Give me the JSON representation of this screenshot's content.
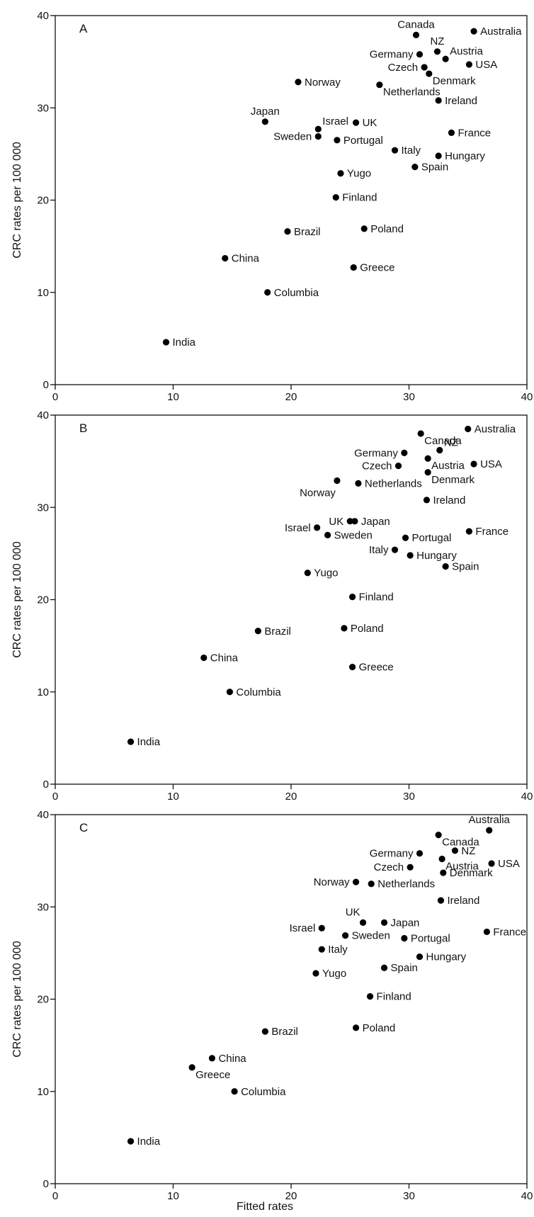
{
  "chart_data": [
    {
      "type": "scatter",
      "panel_label": "A",
      "ylabel": "CRC rates per 100 000",
      "xlabel": "",
      "xlim": [
        0,
        40
      ],
      "ylim": [
        0,
        40
      ],
      "x_ticks": [
        0,
        10,
        20,
        30,
        40
      ],
      "y_ticks": [
        0,
        10,
        20,
        30,
        40
      ],
      "grid": false,
      "points": [
        {
          "label": "Australia",
          "x": 35.5,
          "y": 38.3,
          "anchor": "right"
        },
        {
          "label": "Canada",
          "x": 30.6,
          "y": 37.9,
          "anchor": "top"
        },
        {
          "label": "NZ",
          "x": 32.4,
          "y": 36.1,
          "anchor": "top"
        },
        {
          "label": "Germany",
          "x": 30.9,
          "y": 35.8,
          "anchor": "left"
        },
        {
          "label": "Austria",
          "x": 33.1,
          "y": 35.3,
          "anchor": "right-up"
        },
        {
          "label": "USA",
          "x": 35.1,
          "y": 34.7,
          "anchor": "right"
        },
        {
          "label": "Czech",
          "x": 31.3,
          "y": 34.4,
          "anchor": "left"
        },
        {
          "label": "Denmark",
          "x": 31.7,
          "y": 33.7,
          "anchor": "right-down"
        },
        {
          "label": "Norway",
          "x": 20.6,
          "y": 32.8,
          "anchor": "right"
        },
        {
          "label": "Netherlands",
          "x": 27.5,
          "y": 32.5,
          "anchor": "right-down"
        },
        {
          "label": "Ireland",
          "x": 32.5,
          "y": 30.8,
          "anchor": "right"
        },
        {
          "label": "Japan",
          "x": 17.8,
          "y": 28.5,
          "anchor": "top"
        },
        {
          "label": "UK",
          "x": 25.5,
          "y": 28.4,
          "anchor": "right"
        },
        {
          "label": "Israel",
          "x": 22.3,
          "y": 27.7,
          "anchor": "right-up"
        },
        {
          "label": "France",
          "x": 33.6,
          "y": 27.3,
          "anchor": "right"
        },
        {
          "label": "Sweden",
          "x": 22.3,
          "y": 26.9,
          "anchor": "left"
        },
        {
          "label": "Portugal",
          "x": 23.9,
          "y": 26.5,
          "anchor": "right"
        },
        {
          "label": "Italy",
          "x": 28.8,
          "y": 25.4,
          "anchor": "right"
        },
        {
          "label": "Hungary",
          "x": 32.5,
          "y": 24.8,
          "anchor": "right"
        },
        {
          "label": "Spain",
          "x": 30.5,
          "y": 23.6,
          "anchor": "right"
        },
        {
          "label": "Yugo",
          "x": 24.2,
          "y": 22.9,
          "anchor": "right"
        },
        {
          "label": "Finland",
          "x": 23.8,
          "y": 20.3,
          "anchor": "right"
        },
        {
          "label": "Brazil",
          "x": 19.7,
          "y": 16.6,
          "anchor": "right"
        },
        {
          "label": "Poland",
          "x": 26.2,
          "y": 16.9,
          "anchor": "right"
        },
        {
          "label": "China",
          "x": 14.4,
          "y": 13.7,
          "anchor": "right"
        },
        {
          "label": "Greece",
          "x": 25.3,
          "y": 12.7,
          "anchor": "right"
        },
        {
          "label": "Columbia",
          "x": 18.0,
          "y": 10.0,
          "anchor": "right"
        },
        {
          "label": "India",
          "x": 9.4,
          "y": 4.6,
          "anchor": "right"
        }
      ]
    },
    {
      "type": "scatter",
      "panel_label": "B",
      "ylabel": "CRC rates per 100 000",
      "xlabel": "",
      "xlim": [
        0,
        40
      ],
      "ylim": [
        0,
        40
      ],
      "x_ticks": [
        0,
        10,
        20,
        30,
        40
      ],
      "y_ticks": [
        0,
        10,
        20,
        30,
        40
      ],
      "grid": false,
      "points": [
        {
          "label": "Australia",
          "x": 35.0,
          "y": 38.5,
          "anchor": "right"
        },
        {
          "label": "Canada",
          "x": 31.0,
          "y": 38.0,
          "anchor": "right-down"
        },
        {
          "label": "NZ",
          "x": 32.6,
          "y": 36.2,
          "anchor": "right-up"
        },
        {
          "label": "Germany",
          "x": 29.6,
          "y": 35.9,
          "anchor": "left"
        },
        {
          "label": "Austria",
          "x": 31.6,
          "y": 35.3,
          "anchor": "right-down"
        },
        {
          "label": "USA",
          "x": 35.5,
          "y": 34.7,
          "anchor": "right"
        },
        {
          "label": "Czech",
          "x": 29.1,
          "y": 34.5,
          "anchor": "left"
        },
        {
          "label": "Denmark",
          "x": 31.6,
          "y": 33.8,
          "anchor": "right-down"
        },
        {
          "label": "Norway",
          "x": 23.9,
          "y": 32.9,
          "anchor": "bottom-left"
        },
        {
          "label": "Netherlands",
          "x": 25.7,
          "y": 32.6,
          "anchor": "right"
        },
        {
          "label": "Ireland",
          "x": 31.5,
          "y": 30.8,
          "anchor": "right"
        },
        {
          "label": "UK",
          "x": 25.0,
          "y": 28.5,
          "anchor": "left"
        },
        {
          "label": "Japan",
          "x": 25.4,
          "y": 28.5,
          "anchor": "right"
        },
        {
          "label": "Israel",
          "x": 22.2,
          "y": 27.8,
          "anchor": "left"
        },
        {
          "label": "France",
          "x": 35.1,
          "y": 27.4,
          "anchor": "right"
        },
        {
          "label": "Sweden",
          "x": 23.1,
          "y": 27.0,
          "anchor": "right"
        },
        {
          "label": "Portugal",
          "x": 29.7,
          "y": 26.7,
          "anchor": "right"
        },
        {
          "label": "Italy",
          "x": 28.8,
          "y": 25.4,
          "anchor": "left"
        },
        {
          "label": "Hungary",
          "x": 30.1,
          "y": 24.8,
          "anchor": "right"
        },
        {
          "label": "Spain",
          "x": 33.1,
          "y": 23.6,
          "anchor": "right"
        },
        {
          "label": "Yugo",
          "x": 21.4,
          "y": 22.9,
          "anchor": "right"
        },
        {
          "label": "Finland",
          "x": 25.2,
          "y": 20.3,
          "anchor": "right"
        },
        {
          "label": "Brazil",
          "x": 17.2,
          "y": 16.6,
          "anchor": "right"
        },
        {
          "label": "Poland",
          "x": 24.5,
          "y": 16.9,
          "anchor": "right"
        },
        {
          "label": "China",
          "x": 12.6,
          "y": 13.7,
          "anchor": "right"
        },
        {
          "label": "Greece",
          "x": 25.2,
          "y": 12.7,
          "anchor": "right"
        },
        {
          "label": "Columbia",
          "x": 14.8,
          "y": 10.0,
          "anchor": "right"
        },
        {
          "label": "India",
          "x": 6.4,
          "y": 4.6,
          "anchor": "right"
        }
      ]
    },
    {
      "type": "scatter",
      "panel_label": "C",
      "ylabel": "CRC rates per 100 000",
      "xlabel": "Fitted rates",
      "xlim": [
        0,
        40
      ],
      "ylim": [
        0,
        40
      ],
      "x_ticks": [
        0,
        10,
        20,
        30,
        40
      ],
      "y_ticks": [
        0,
        10,
        20,
        30,
        40
      ],
      "grid": false,
      "points": [
        {
          "label": "Australia",
          "x": 36.8,
          "y": 38.3,
          "anchor": "top"
        },
        {
          "label": "Canada",
          "x": 32.5,
          "y": 37.8,
          "anchor": "right-down"
        },
        {
          "label": "NZ",
          "x": 33.9,
          "y": 36.1,
          "anchor": "right"
        },
        {
          "label": "Germany",
          "x": 30.9,
          "y": 35.8,
          "anchor": "left"
        },
        {
          "label": "Austria",
          "x": 32.8,
          "y": 35.2,
          "anchor": "right-down"
        },
        {
          "label": "USA",
          "x": 37.0,
          "y": 34.7,
          "anchor": "right"
        },
        {
          "label": "Czech",
          "x": 30.1,
          "y": 34.3,
          "anchor": "left"
        },
        {
          "label": "Denmark",
          "x": 32.9,
          "y": 33.7,
          "anchor": "right"
        },
        {
          "label": "Norway",
          "x": 25.5,
          "y": 32.7,
          "anchor": "left"
        },
        {
          "label": "Netherlands",
          "x": 26.8,
          "y": 32.5,
          "anchor": "right"
        },
        {
          "label": "Ireland",
          "x": 32.7,
          "y": 30.7,
          "anchor": "right"
        },
        {
          "label": "UK",
          "x": 26.1,
          "y": 28.3,
          "anchor": "top-left"
        },
        {
          "label": "Japan",
          "x": 27.9,
          "y": 28.3,
          "anchor": "right"
        },
        {
          "label": "Israel",
          "x": 22.6,
          "y": 27.7,
          "anchor": "left"
        },
        {
          "label": "France",
          "x": 36.6,
          "y": 27.3,
          "anchor": "right"
        },
        {
          "label": "Sweden",
          "x": 24.6,
          "y": 26.9,
          "anchor": "right"
        },
        {
          "label": "Portugal",
          "x": 29.6,
          "y": 26.6,
          "anchor": "right"
        },
        {
          "label": "Italy",
          "x": 22.6,
          "y": 25.4,
          "anchor": "right"
        },
        {
          "label": "Hungary",
          "x": 30.9,
          "y": 24.6,
          "anchor": "right"
        },
        {
          "label": "Spain",
          "x": 27.9,
          "y": 23.4,
          "anchor": "right"
        },
        {
          "label": "Yugo",
          "x": 22.1,
          "y": 22.8,
          "anchor": "right"
        },
        {
          "label": "Finland",
          "x": 26.7,
          "y": 20.3,
          "anchor": "right"
        },
        {
          "label": "Brazil",
          "x": 17.8,
          "y": 16.5,
          "anchor": "right"
        },
        {
          "label": "Poland",
          "x": 25.5,
          "y": 16.9,
          "anchor": "right"
        },
        {
          "label": "China",
          "x": 13.3,
          "y": 13.6,
          "anchor": "right"
        },
        {
          "label": "Greece",
          "x": 11.6,
          "y": 12.6,
          "anchor": "right-down"
        },
        {
          "label": "Columbia",
          "x": 15.2,
          "y": 10.0,
          "anchor": "right"
        },
        {
          "label": "India",
          "x": 6.4,
          "y": 4.6,
          "anchor": "right"
        }
      ]
    }
  ]
}
